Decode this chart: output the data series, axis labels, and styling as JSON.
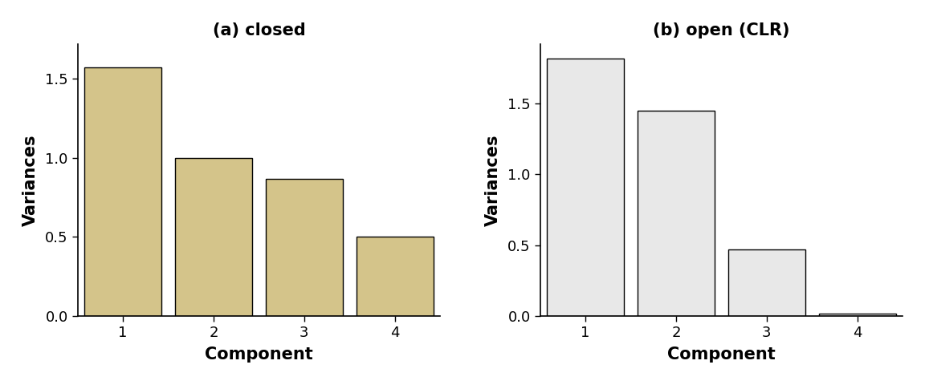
{
  "subplot_a": {
    "title": "(a) closed",
    "values": [
      1.57,
      1.0,
      0.87,
      0.5
    ],
    "categories": [
      1,
      2,
      3,
      4
    ],
    "bar_color": "#d4c48a",
    "bar_edgecolor": "#000000",
    "xlabel": "Component",
    "ylabel": "Variances",
    "ylim": [
      0,
      1.72
    ],
    "yticks": [
      0.0,
      0.5,
      1.0,
      1.5
    ],
    "xlim": [
      0.5,
      4.5
    ]
  },
  "subplot_b": {
    "title": "(b) open (CLR)",
    "values": [
      1.82,
      1.45,
      0.47,
      0.02
    ],
    "categories": [
      1,
      2,
      3,
      4
    ],
    "bar_color": "#e8e8e8",
    "bar_edgecolor": "#000000",
    "xlabel": "Component",
    "ylabel": "Variances",
    "ylim": [
      0,
      1.92
    ],
    "yticks": [
      0.0,
      0.5,
      1.0,
      1.5
    ],
    "xlim": [
      0.5,
      4.5
    ]
  },
  "background_color": "#ffffff",
  "title_fontsize": 15,
  "label_fontsize": 15,
  "tick_fontsize": 13,
  "bar_width": 0.85
}
